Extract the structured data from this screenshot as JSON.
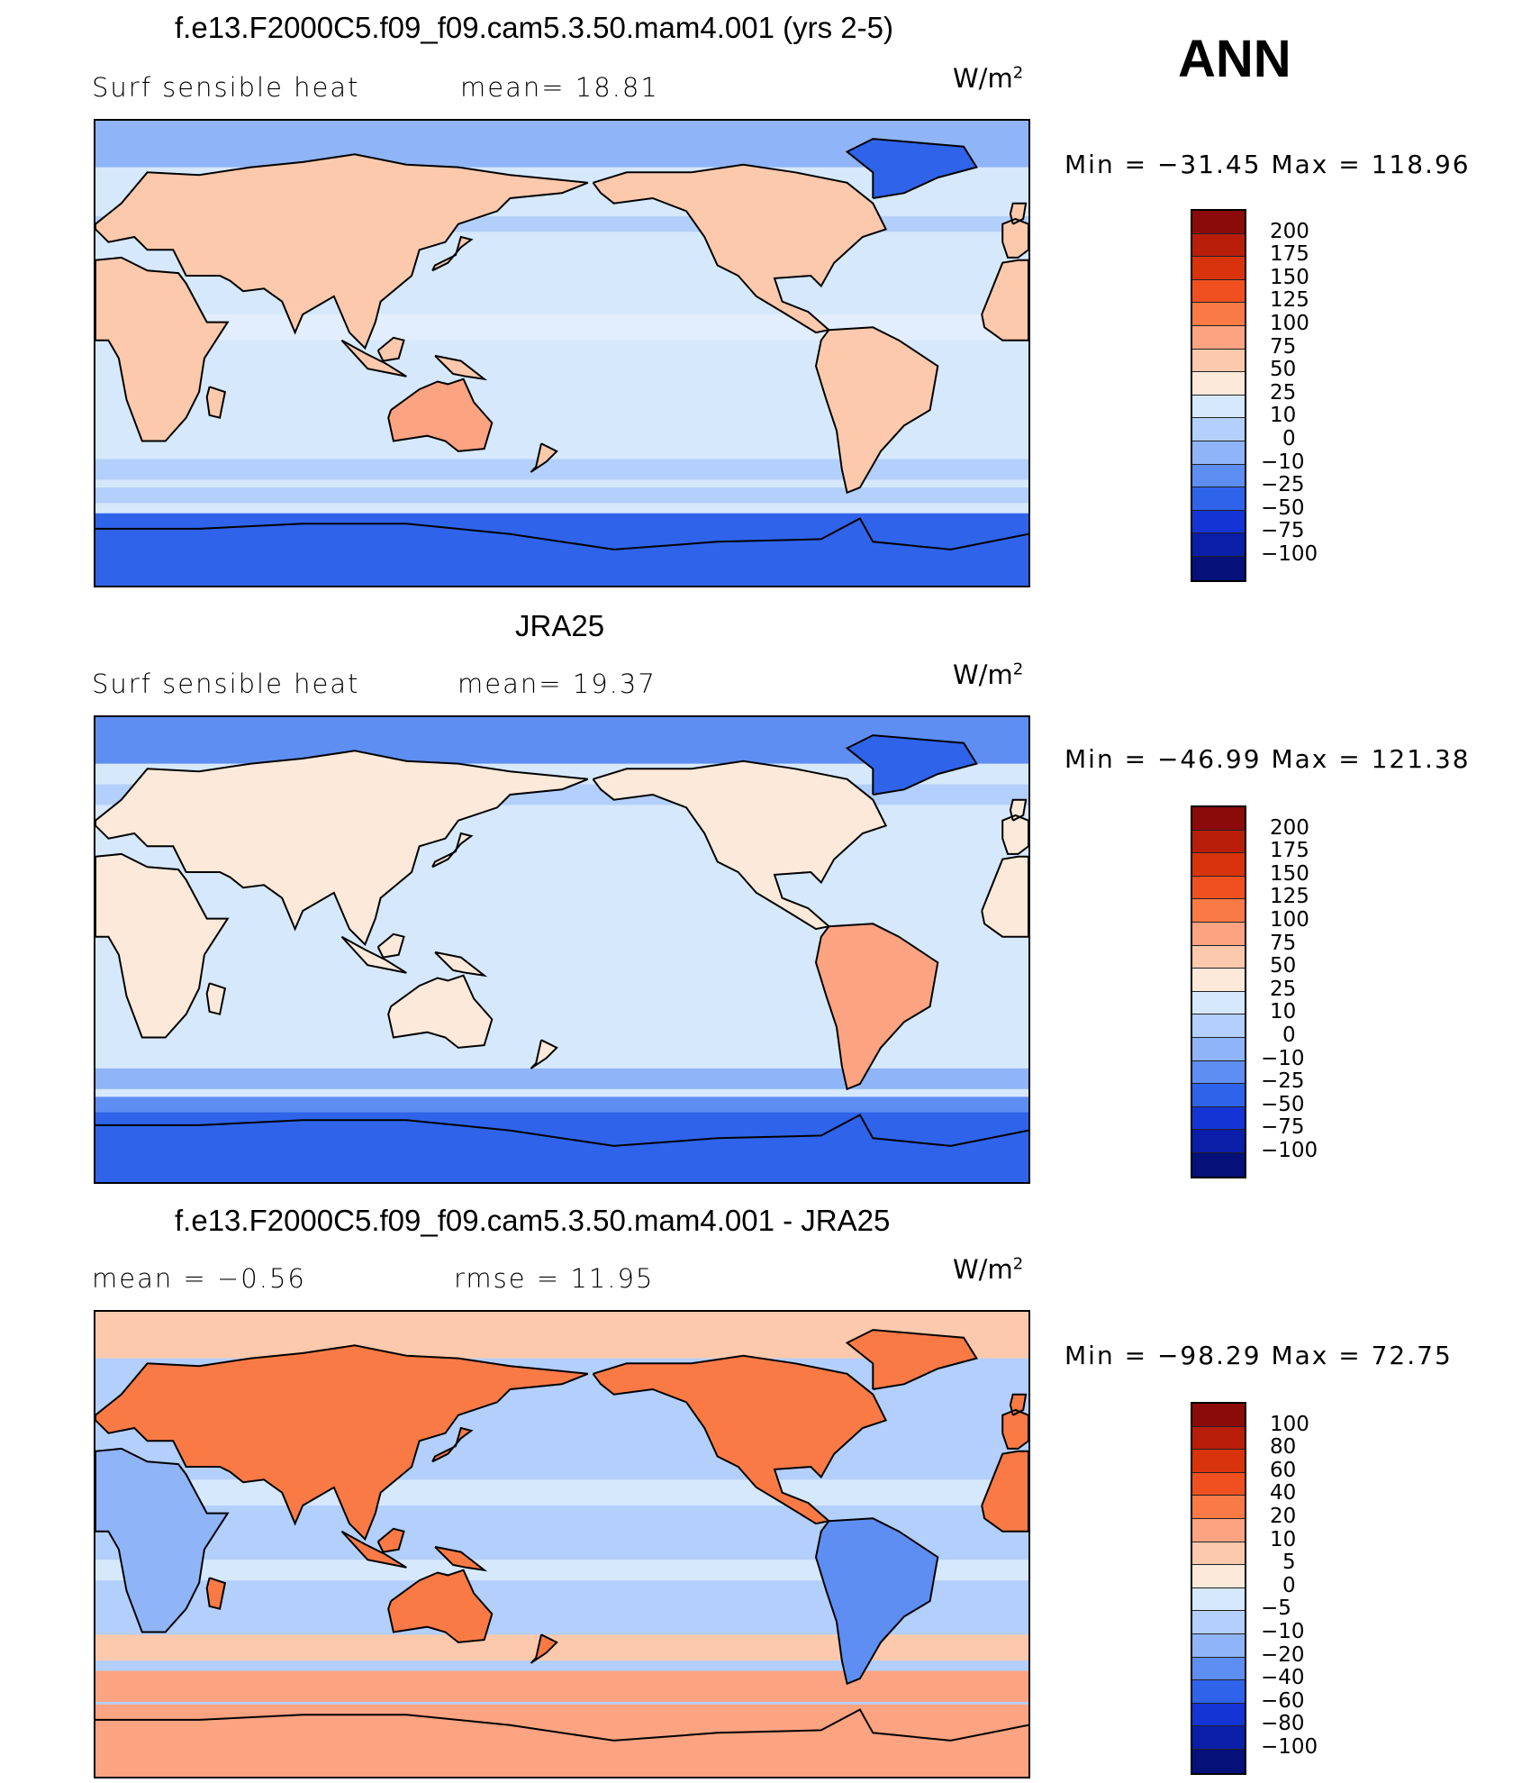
{
  "season": "ANN",
  "panels": [
    {
      "title": "f.e13.F2000C5.f09_f09.cam5.3.50.mam4.001 (yrs 2-5)",
      "left_label": "Surf  sensible  heat",
      "stat_text": "mean=   18.81",
      "unit_base": "W/m",
      "unit_exp": "2",
      "minmax": "Min  =  −31.45  Max  =  118.96",
      "colorbar": {
        "ticks": [
          "200",
          "175",
          "150",
          "125",
          "100",
          "75",
          "50",
          "25",
          "10",
          "0",
          "−10",
          "−25",
          "−50",
          "−75",
          "−100"
        ],
        "colors": [
          "#8b0a0a",
          "#b81e0a",
          "#d9330b",
          "#f05020",
          "#fa7a46",
          "#fca381",
          "#fdc9ac",
          "#fde9d9",
          "#d6e8fc",
          "#b3cffb",
          "#8fb4f8",
          "#5e8ef2",
          "#2f63ea",
          "#1534d6",
          "#0a1ea8",
          "#051078"
        ]
      },
      "map_style": "cam"
    },
    {
      "title": "JRA25",
      "left_label": "Surf  sensible  heat",
      "stat_text": "mean=   19.37",
      "unit_base": "W/m",
      "unit_exp": "2",
      "minmax": "Min  =  −46.99  Max  =  121.38",
      "colorbar": {
        "ticks": [
          "200",
          "175",
          "150",
          "125",
          "100",
          "75",
          "50",
          "25",
          "10",
          "0",
          "−10",
          "−25",
          "−50",
          "−75",
          "−100"
        ],
        "colors": [
          "#8b0a0a",
          "#b81e0a",
          "#d9330b",
          "#f05020",
          "#fa7a46",
          "#fca381",
          "#fdc9ac",
          "#fde9d9",
          "#d6e8fc",
          "#b3cffb",
          "#8fb4f8",
          "#5e8ef2",
          "#2f63ea",
          "#1534d6",
          "#0a1ea8",
          "#051078"
        ]
      },
      "map_style": "jra"
    },
    {
      "title": "f.e13.F2000C5.f09_f09.cam5.3.50.mam4.001 - JRA25",
      "left_label": "mean  =    −0.56",
      "stat_text": "rmse  =    11.95",
      "unit_base": "W/m",
      "unit_exp": "2",
      "minmax": "Min  =  −98.29  Max  =   72.75",
      "colorbar": {
        "ticks": [
          "100",
          "80",
          "60",
          "40",
          "20",
          "10",
          "5",
          "0",
          "−5",
          "−10",
          "−20",
          "−40",
          "−60",
          "−80",
          "−100"
        ],
        "colors": [
          "#8b0a0a",
          "#b81e0a",
          "#d9330b",
          "#f05020",
          "#fa7a46",
          "#fca381",
          "#fdc9ac",
          "#fde9d9",
          "#d6e8fc",
          "#b3cffb",
          "#8fb4f8",
          "#5e8ef2",
          "#2f63ea",
          "#1534d6",
          "#0a1ea8",
          "#051078"
        ]
      },
      "map_style": "diff"
    }
  ]
}
